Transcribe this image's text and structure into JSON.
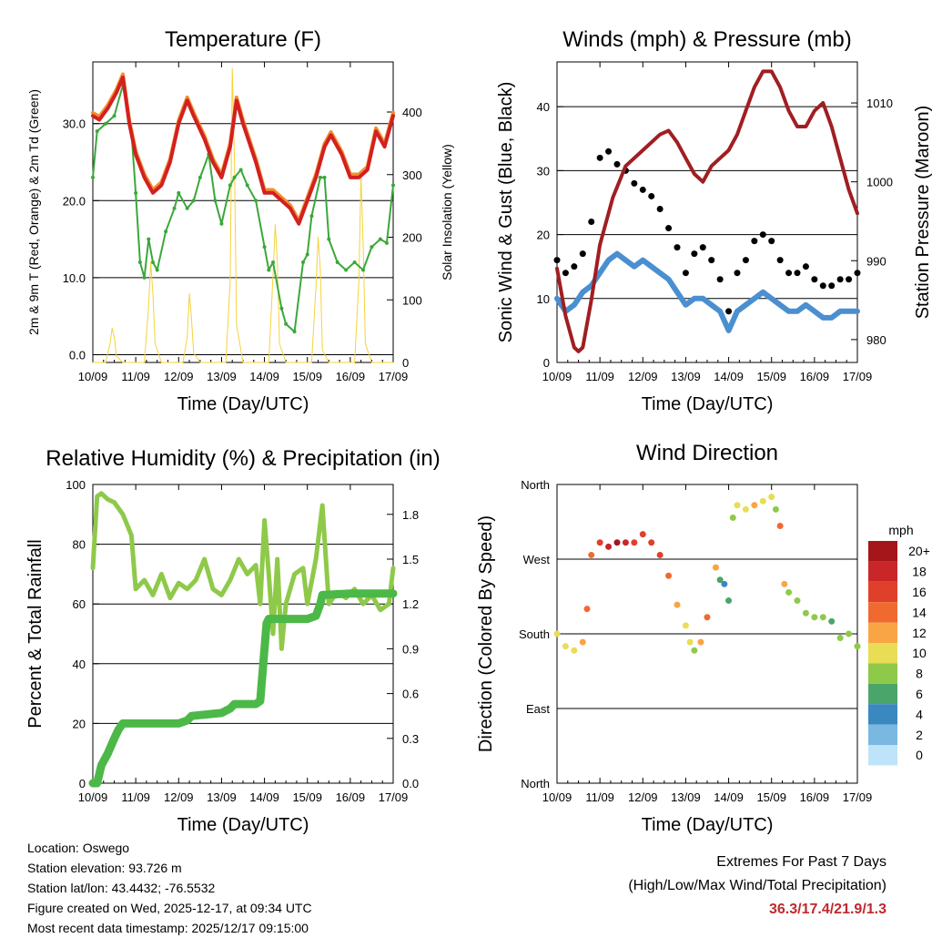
{
  "chart_data": [
    {
      "type": "line",
      "title": "Temperature (F)",
      "xlabel": "Time (Day/UTC)",
      "ylabel_left": "2m & 9m T (Red, Orange) & 2m Td (Green)",
      "ylabel_right": "Solar Insolation (Yellow)",
      "x_ticks": [
        "10/09",
        "11/09",
        "12/09",
        "13/09",
        "14/09",
        "15/09",
        "16/09",
        "17/09"
      ],
      "ylim_left": [
        -1,
        38
      ],
      "y_ticks_left": [
        "0.0",
        "10.0",
        "20.0",
        "30.0"
      ],
      "ylim_right": [
        0,
        480
      ],
      "y_ticks_right": [
        "0",
        "100",
        "200",
        "300",
        "400"
      ],
      "series": [
        {
          "name": "2m T",
          "axis": "left",
          "color": "#d32020",
          "x": [
            0,
            0.15,
            0.35,
            0.55,
            0.7,
            0.85,
            1.0,
            1.2,
            1.4,
            1.6,
            1.8,
            2.0,
            2.2,
            2.35,
            2.6,
            2.8,
            3.0,
            3.2,
            3.35,
            3.5,
            3.8,
            4.0,
            4.2,
            4.4,
            4.6,
            4.8,
            5.0,
            5.2,
            5.4,
            5.55,
            5.8,
            6.0,
            6.2,
            6.4,
            6.6,
            6.8,
            7.0
          ],
          "values": [
            31,
            30.5,
            32,
            34,
            36,
            30,
            26,
            23,
            21,
            22,
            25,
            30,
            33,
            31,
            28,
            25,
            23,
            27,
            33,
            30,
            25,
            21,
            21,
            20,
            19,
            17,
            20,
            23,
            27,
            28.5,
            26,
            23,
            23,
            24,
            29,
            27,
            31
          ]
        },
        {
          "name": "9m T",
          "axis": "left",
          "color": "#f09030",
          "x": [
            0,
            0.15,
            0.35,
            0.55,
            0.7,
            0.85,
            1.0,
            1.2,
            1.4,
            1.6,
            1.8,
            2.0,
            2.2,
            2.35,
            2.6,
            2.8,
            3.0,
            3.2,
            3.35,
            3.5,
            3.8,
            4.0,
            4.2,
            4.4,
            4.6,
            4.8,
            5.0,
            5.2,
            5.4,
            5.55,
            5.8,
            6.0,
            6.2,
            6.4,
            6.6,
            6.8,
            7.0
          ],
          "values": [
            31.4,
            30.9,
            32.4,
            34.4,
            36.4,
            30.4,
            26.4,
            23.4,
            21.4,
            22.4,
            25.4,
            30.4,
            33.4,
            31.4,
            28.4,
            25.4,
            23.4,
            27.4,
            33.4,
            30.4,
            25.4,
            21.4,
            21.4,
            20.4,
            19.4,
            17.4,
            20.4,
            23.4,
            27.4,
            28.9,
            26.4,
            23.4,
            23.4,
            24.4,
            29.4,
            27.4,
            31.4
          ]
        },
        {
          "name": "2m Td",
          "axis": "left",
          "color": "#3aa83a",
          "x": [
            0,
            0.1,
            0.3,
            0.5,
            0.7,
            0.9,
            1.0,
            1.1,
            1.2,
            1.3,
            1.4,
            1.5,
            1.7,
            1.9,
            2.0,
            2.2,
            2.35,
            2.5,
            2.7,
            2.85,
            3.0,
            3.2,
            3.3,
            3.45,
            3.6,
            3.8,
            4.0,
            4.1,
            4.2,
            4.4,
            4.5,
            4.7,
            4.9,
            5.0,
            5.1,
            5.3,
            5.4,
            5.5,
            5.7,
            5.9,
            6.1,
            6.3,
            6.5,
            6.7,
            6.85,
            7.0
          ],
          "values": [
            23,
            29,
            30,
            31,
            35,
            29,
            21,
            12,
            10,
            15,
            12,
            11,
            16,
            19,
            21,
            19,
            20,
            23,
            26,
            20,
            17,
            22,
            23,
            24,
            22,
            20,
            14,
            11,
            12,
            6,
            4,
            3,
            12,
            13,
            18,
            23,
            23,
            15,
            12,
            11,
            12,
            11,
            14,
            15,
            14.5,
            22
          ]
        },
        {
          "name": "Solar Insolation",
          "axis": "right",
          "color": "#f5d33a",
          "x": [
            0,
            0.3,
            0.4,
            0.45,
            0.5,
            0.55,
            0.7,
            1.2,
            1.3,
            1.35,
            1.4,
            1.45,
            1.6,
            2.1,
            2.2,
            2.25,
            2.3,
            2.35,
            2.5,
            3.1,
            3.2,
            3.25,
            3.3,
            3.35,
            3.5,
            4.1,
            4.2,
            4.25,
            4.3,
            4.35,
            4.5,
            5.1,
            5.2,
            5.25,
            5.3,
            5.35,
            5.5,
            6.1,
            6.2,
            6.25,
            6.3,
            6.35,
            6.5,
            7.0
          ],
          "values": [
            0,
            0,
            30,
            55,
            40,
            10,
            0,
            0,
            90,
            160,
            110,
            30,
            0,
            0,
            40,
            110,
            70,
            15,
            0,
            0,
            130,
            470,
            320,
            60,
            0,
            0,
            140,
            220,
            160,
            30,
            0,
            0,
            120,
            200,
            150,
            20,
            0,
            0,
            130,
            300,
            190,
            30,
            0,
            0
          ]
        }
      ]
    },
    {
      "type": "line",
      "title": "Winds (mph) & Pressure (mb)",
      "xlabel": "Time (Day/UTC)",
      "ylabel_left": "Sonic Wind & Gust (Blue, Black)",
      "ylabel_right": "Station Pressure (Maroon)",
      "x_ticks": [
        "10/09",
        "11/09",
        "12/09",
        "13/09",
        "14/09",
        "15/09",
        "16/09",
        "17/09"
      ],
      "ylim_left": [
        0,
        47
      ],
      "y_ticks_left": [
        "0",
        "10",
        "20",
        "30",
        "40"
      ],
      "ylim_right": [
        977.1,
        1015.2
      ],
      "y_ticks_right": [
        "980",
        "990",
        "1000",
        "1010"
      ],
      "series": [
        {
          "name": "Sonic Wind",
          "axis": "left",
          "color": "#4a8fd0",
          "x": [
            0,
            0.2,
            0.4,
            0.6,
            0.8,
            1.0,
            1.2,
            1.4,
            1.6,
            1.8,
            2.0,
            2.2,
            2.4,
            2.6,
            2.8,
            3.0,
            3.2,
            3.4,
            3.6,
            3.8,
            4.0,
            4.2,
            4.4,
            4.6,
            4.8,
            5.0,
            5.2,
            5.4,
            5.6,
            5.8,
            6.0,
            6.2,
            6.4,
            6.6,
            6.8,
            7.0
          ],
          "values": [
            10,
            8,
            9,
            11,
            12,
            14,
            16,
            17,
            16,
            15,
            16,
            15,
            14,
            13,
            11,
            9,
            10,
            10,
            9,
            8,
            5,
            8,
            9,
            10,
            11,
            10,
            9,
            8,
            8,
            9,
            8,
            7,
            7,
            8,
            8,
            8
          ]
        },
        {
          "name": "Gust",
          "axis": "left",
          "color": "#000000",
          "x": [
            0,
            0.2,
            0.4,
            0.6,
            0.8,
            1.0,
            1.2,
            1.4,
            1.6,
            1.8,
            2.0,
            2.2,
            2.4,
            2.6,
            2.8,
            3.0,
            3.2,
            3.4,
            3.6,
            3.8,
            4.0,
            4.2,
            4.4,
            4.6,
            4.8,
            5.0,
            5.2,
            5.4,
            5.6,
            5.8,
            6.0,
            6.2,
            6.4,
            6.6,
            6.8,
            7.0
          ],
          "values": [
            16,
            14,
            15,
            17,
            22,
            32,
            33,
            31,
            30,
            28,
            27,
            26,
            24,
            21,
            18,
            14,
            17,
            18,
            16,
            13,
            8,
            14,
            16,
            19,
            20,
            19,
            16,
            14,
            14,
            15,
            13,
            12,
            12,
            13,
            13,
            14
          ]
        },
        {
          "name": "Station Pressure",
          "axis": "right",
          "color": "#a01e22",
          "x": [
            0,
            0.2,
            0.4,
            0.5,
            0.6,
            0.8,
            1.0,
            1.3,
            1.6,
            2.0,
            2.4,
            2.6,
            2.8,
            3.0,
            3.2,
            3.4,
            3.6,
            3.8,
            4.0,
            4.2,
            4.4,
            4.6,
            4.8,
            5.0,
            5.2,
            5.4,
            5.6,
            5.8,
            6.0,
            6.2,
            6.4,
            6.6,
            6.8,
            7.0
          ],
          "values": [
            989,
            983,
            979,
            978.5,
            979,
            985,
            992,
            998,
            1002,
            1004,
            1006,
            1006.5,
            1005,
            1003,
            1001,
            1000,
            1002,
            1003,
            1004,
            1006,
            1009,
            1012,
            1014,
            1014,
            1012,
            1009,
            1007,
            1007,
            1009,
            1010,
            1007,
            1003,
            999,
            996
          ]
        }
      ]
    },
    {
      "type": "line",
      "title": "Relative Humidity (%) & Precipitation (in)",
      "xlabel": "Time (Day/UTC)",
      "ylabel_left": "Percent & Total Rainfall",
      "x_ticks": [
        "10/09",
        "11/09",
        "12/09",
        "13/09",
        "14/09",
        "15/09",
        "16/09",
        "17/09"
      ],
      "ylim_left": [
        0,
        100
      ],
      "y_ticks_left": [
        "0",
        "20",
        "40",
        "60",
        "80",
        "100"
      ],
      "ylim_right": [
        0,
        2.0
      ],
      "y_ticks_right": [
        "0.0",
        "0.3",
        "0.6",
        "0.9",
        "1.2",
        "1.5",
        "1.8"
      ],
      "series": [
        {
          "name": "Relative Humidity",
          "axis": "left",
          "color": "#8fc94a",
          "x": [
            0,
            0.1,
            0.2,
            0.35,
            0.5,
            0.7,
            0.9,
            1.0,
            1.2,
            1.4,
            1.6,
            1.8,
            2.0,
            2.2,
            2.4,
            2.6,
            2.8,
            3.0,
            3.2,
            3.4,
            3.6,
            3.8,
            3.9,
            4.0,
            4.1,
            4.2,
            4.3,
            4.4,
            4.5,
            4.7,
            4.9,
            5.0,
            5.2,
            5.35,
            5.5,
            5.7,
            5.9,
            6.1,
            6.3,
            6.5,
            6.7,
            6.9,
            7.0
          ],
          "values": [
            72,
            96,
            97,
            95,
            94,
            90,
            83,
            65,
            68,
            63,
            70,
            62,
            67,
            65,
            68,
            75,
            65,
            63,
            68,
            75,
            70,
            73,
            60,
            88,
            70,
            50,
            75,
            45,
            60,
            70,
            72,
            60,
            75,
            93,
            60,
            64,
            62,
            65,
            60,
            63,
            58,
            60,
            72
          ]
        },
        {
          "name": "Total Precipitation",
          "axis": "right",
          "color": "#4cb848",
          "x": [
            0,
            0.1,
            0.2,
            0.35,
            0.5,
            0.6,
            0.7,
            1.0,
            2.0,
            2.2,
            2.3,
            3.0,
            3.2,
            3.3,
            3.8,
            3.9,
            4.0,
            4.05,
            4.1,
            5.0,
            5.2,
            5.3,
            5.35,
            6.0,
            7.0
          ],
          "values": [
            0,
            0,
            0.12,
            0.2,
            0.3,
            0.36,
            0.4,
            0.4,
            0.4,
            0.42,
            0.45,
            0.47,
            0.5,
            0.53,
            0.53,
            0.55,
            0.9,
            1.07,
            1.1,
            1.1,
            1.12,
            1.2,
            1.26,
            1.27,
            1.27
          ]
        }
      ]
    },
    {
      "type": "scatter",
      "title": "Wind Direction",
      "xlabel": "Time (Day/UTC)",
      "ylabel": "Direction (Colored By Speed)",
      "x_ticks": [
        "10/09",
        "11/09",
        "12/09",
        "13/09",
        "14/09",
        "15/09",
        "16/09",
        "17/09"
      ],
      "ylim": [
        0,
        360
      ],
      "y_ticks": [
        "North",
        "East",
        "South",
        "West",
        "North"
      ],
      "legend_title": "mph",
      "legend_labels": [
        "20+",
        "18",
        "16",
        "14",
        "12",
        "10",
        "8",
        "6",
        "4",
        "2",
        "0"
      ],
      "legend_colors": [
        "#a5161a",
        "#c9262a",
        "#e0402a",
        "#f06a30",
        "#f9a545",
        "#e8dd55",
        "#8fc94a",
        "#4aa56a",
        "#3a88c0",
        "#7ab8e2",
        "#bde4f8"
      ],
      "x": [
        0,
        0.2,
        0.4,
        0.6,
        0.7,
        0.8,
        1.0,
        1.2,
        1.4,
        1.6,
        1.8,
        2.0,
        2.2,
        2.4,
        2.6,
        2.8,
        3.0,
        3.1,
        3.2,
        3.35,
        3.5,
        3.7,
        3.8,
        3.9,
        4.0,
        4.1,
        4.2,
        4.4,
        4.6,
        4.8,
        5.0,
        5.1,
        5.2,
        5.3,
        5.4,
        5.6,
        5.8,
        6.0,
        6.2,
        6.4,
        6.6,
        6.8,
        7.0
      ],
      "directions": [
        180,
        165,
        160,
        170,
        210,
        275,
        290,
        285,
        290,
        290,
        290,
        300,
        290,
        275,
        250,
        215,
        190,
        170,
        160,
        170,
        200,
        260,
        245,
        240,
        220,
        320,
        335,
        330,
        335,
        340,
        345,
        330,
        310,
        240,
        230,
        220,
        205,
        200,
        200,
        195,
        175,
        180,
        165
      ],
      "speeds": [
        9,
        10,
        9,
        11,
        13,
        14,
        16,
        18,
        19,
        17,
        15,
        15,
        16,
        15,
        14,
        12,
        10,
        9,
        8,
        11,
        13,
        12,
        6,
        4,
        5,
        7,
        9,
        10,
        11,
        10,
        9,
        8,
        14,
        12,
        8,
        7,
        7,
        7,
        7,
        6,
        8,
        7,
        7
      ]
    }
  ],
  "footer": {
    "location": "Location: Oswego",
    "elevation": "Station elevation: 93.726 m",
    "latlon": "Station lat/lon: 43.4432; -76.5532",
    "created": "Figure created on Wed, 2025-12-17, at 09:34 UTC",
    "recent": "Most recent data timestamp: 2025/12/17 09:15:00",
    "extremes_title": "Extremes For Past 7 Days",
    "extremes_subtitle": "(High/Low/Max Wind/Total Precipitation)",
    "extremes_value": "36.3/17.4/21.9/1.3"
  }
}
